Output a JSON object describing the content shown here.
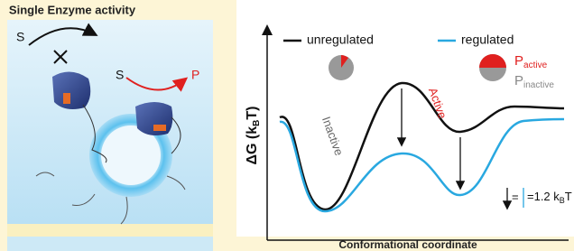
{
  "left_panel": {
    "title": "Single Enzyme activity",
    "substrate_blocked": "S",
    "substrate": "S",
    "product": "P"
  },
  "energy_plot": {
    "y_axis": {
      "label": "ΔG (k",
      "subscript": "B",
      "suffix": "T)"
    },
    "x_axis_label": "Conformational coordinate",
    "legend": [
      {
        "label": "unregulated",
        "color": "#111111"
      },
      {
        "label": "regulated",
        "color": "#29a8e0"
      }
    ],
    "pie_labels": {
      "active": {
        "symbol": "P",
        "subscript": "active"
      },
      "inactive": {
        "symbol": "P",
        "subscript": "inactive"
      }
    },
    "state_labels": [
      "Inactive",
      "Active"
    ],
    "scale_note": {
      "eq": "=",
      "text": "=1.2 k",
      "subscript": "B",
      "suffix": "T"
    }
  }
}
